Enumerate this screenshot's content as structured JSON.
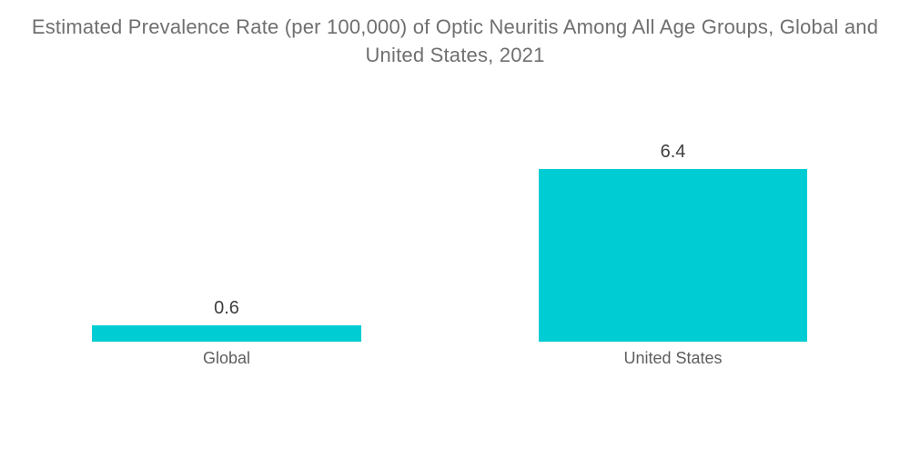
{
  "chart_data": {
    "type": "bar",
    "title": "Estimated Prevalence Rate (per 100,000) of Optic Neuritis Among All Age Groups, Global and United States, 2021",
    "categories": [
      "Global",
      "United States"
    ],
    "values": [
      0.6,
      6.4
    ],
    "value_labels": [
      "0.6",
      "6.4"
    ],
    "xlabel": "",
    "ylabel": "",
    "ylim": [
      0,
      6.4
    ],
    "grid": false,
    "legend": false,
    "axes_visible": false
  },
  "colors": {
    "bar": "#00CDD3",
    "title_text": "#6f6f6f",
    "value_text": "#3e3e3e",
    "category_text": "#5e5e5e",
    "background": "#ffffff"
  }
}
